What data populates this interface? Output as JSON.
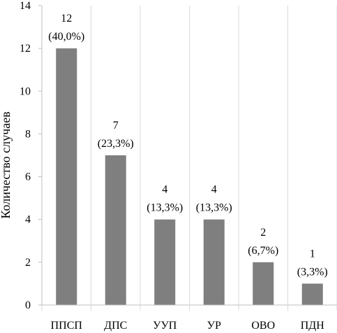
{
  "chart_data": {
    "type": "bar",
    "categories": [
      "ППСП",
      "ДПС",
      "УУП",
      "УР",
      "ОВО",
      "ПДН"
    ],
    "values": [
      12,
      7,
      4,
      4,
      2,
      1
    ],
    "data_labels": [
      [
        "12",
        "(40,0%)"
      ],
      [
        "7",
        "(23,3%)"
      ],
      [
        "4",
        "(13,3%)"
      ],
      [
        "4",
        "(13,3%)"
      ],
      [
        "2",
        "(6,7%)"
      ],
      [
        "1",
        "(3,3%)"
      ]
    ],
    "title": "",
    "xlabel": "",
    "ylabel": "Количество случаев",
    "ylim": [
      0,
      14
    ],
    "yticks": [
      "0",
      "2",
      "4",
      "6",
      "8",
      "10",
      "12",
      "14"
    ],
    "grid": "vertical category separators",
    "legend": "none",
    "colors": {
      "bar": "#7f7f7f",
      "grid": "#d9d9d9",
      "axis": "#bfbfbf",
      "text": "#000000"
    }
  }
}
